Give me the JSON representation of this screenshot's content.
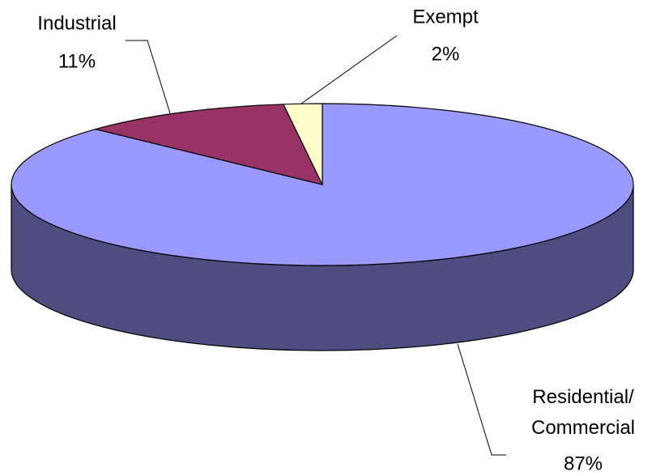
{
  "chart_data": {
    "type": "pie3d",
    "categories": [
      "Residential/Commercial",
      "Industrial",
      "Exempt"
    ],
    "values": [
      87,
      11,
      2
    ],
    "value_labels": [
      "87%",
      "11%",
      "2%"
    ],
    "colors": [
      "#9999ff",
      "#993366",
      "#ffffcc"
    ]
  }
}
